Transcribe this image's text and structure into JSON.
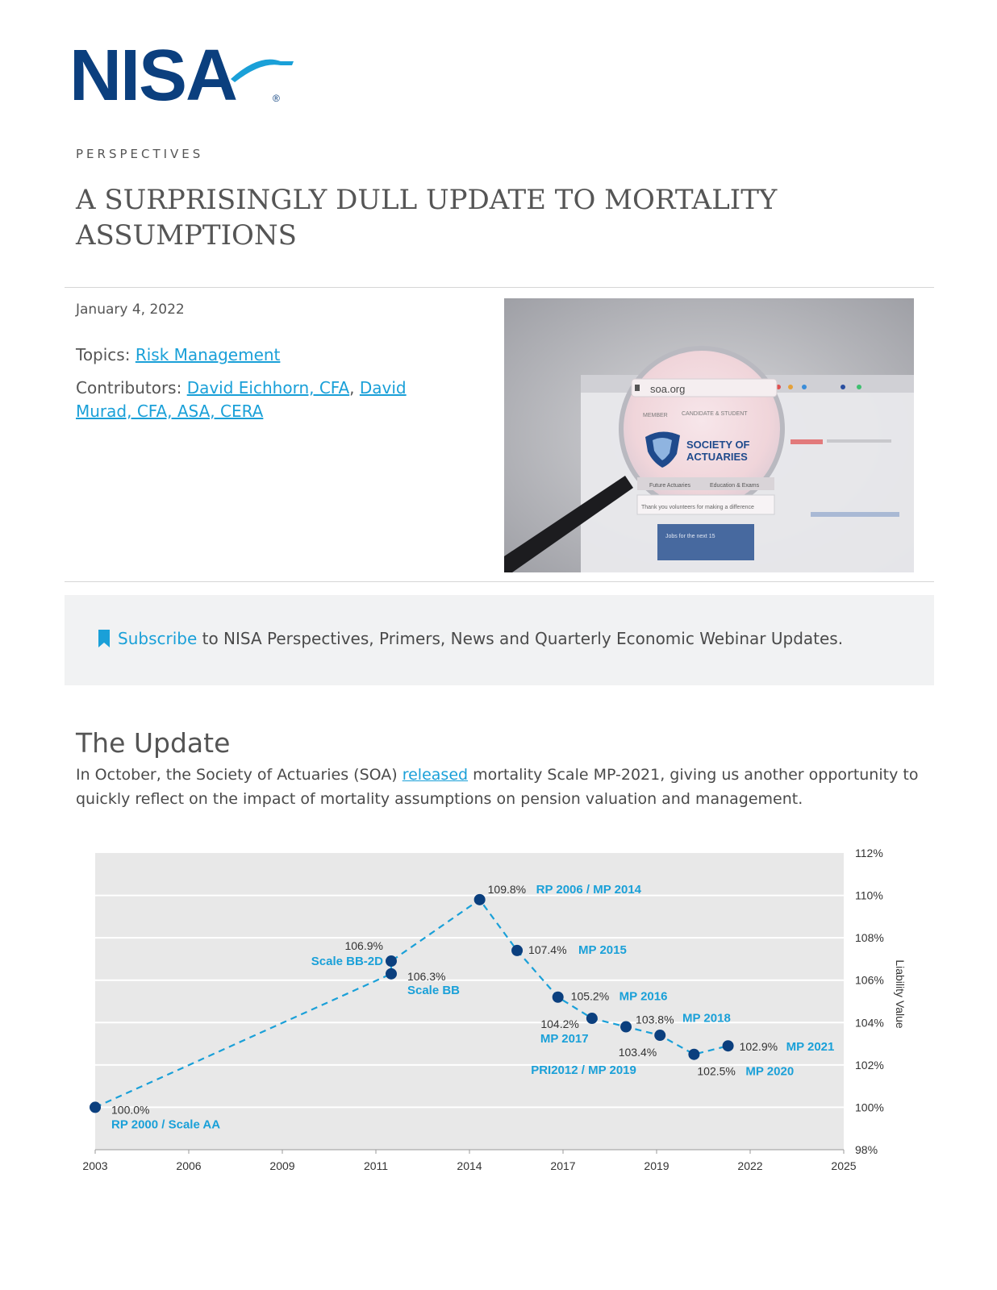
{
  "brand": {
    "logo_text": "NISA",
    "registered": "®"
  },
  "kicker": "PERSPECTIVES",
  "title": "A SURPRISINGLY DULL UPDATE TO MORTALITY ASSUMPTIONS",
  "meta": {
    "date": "January 4, 2022",
    "topics_label": "Topics:",
    "topic_link": "Risk Management",
    "contributors_label": "Contributors:",
    "contributor_1": "David Eichhorn, CFA",
    "separator": ",",
    "contributor_2": "David Murad, CFA, ASA, CERA"
  },
  "hero_image": {
    "url_text": "soa.org",
    "org_line_1": "SOCIETY OF",
    "org_line_2": "ACTUARIES",
    "tab_1": "MEMBER",
    "tab_2": "CANDIDATE & STUDENT",
    "nav_1": "Future Actuaries",
    "nav_2": "Education & Exams",
    "banner_text": "Thank you volunteers for making a difference",
    "button_text": "Jobs for the next 15"
  },
  "subscribe": {
    "icon": "bookmark-icon",
    "link": "Subscribe",
    "text": " to NISA Perspectives, Primers, News and Quarterly Economic Webinar Updates."
  },
  "section": {
    "title": "The Update",
    "text_before": "In October, the Society of Actuaries (SOA) ",
    "link": "released",
    "text_after": " mortality Scale MP-2021, giving us another opportunity to quickly reflect on the impact of mortality assumptions on pension valuation and management."
  },
  "colors": {
    "accent": "#1aa0d8",
    "brand": "#0b3f7e",
    "point": "#0b3f7e",
    "line": "#1aa0d8",
    "plot_bg": "#e8e8e8"
  },
  "chart_data": {
    "type": "scatter",
    "xlabel": "",
    "ylabel": "Liability Value",
    "xlim": [
      2003,
      2025
    ],
    "ylim": [
      98,
      112
    ],
    "x_ticks": [
      "2003",
      "2006",
      "2009",
      "2011",
      "2014",
      "2017",
      "2019",
      "2022",
      "2025"
    ],
    "y_ticks": [
      "98%",
      "100%",
      "102%",
      "104%",
      "106%",
      "108%",
      "110%",
      "112%"
    ],
    "grid": true,
    "y_axis_side": "right",
    "points": [
      {
        "x": 2003.0,
        "y": 100.0,
        "value_label": "100.0%",
        "name": "RP 2000 / Scale AA"
      },
      {
        "x": 2011.7,
        "y": 106.3,
        "value_label": "106.3%",
        "name": "Scale BB"
      },
      {
        "x": 2011.7,
        "y": 106.9,
        "value_label": "106.9%",
        "name": "Scale BB-2D"
      },
      {
        "x": 2014.3,
        "y": 109.8,
        "value_label": "109.8%",
        "name": "RP 2006 / MP 2014"
      },
      {
        "x": 2015.4,
        "y": 107.4,
        "value_label": "107.4%",
        "name": "MP 2015"
      },
      {
        "x": 2016.6,
        "y": 105.2,
        "value_label": "105.2%",
        "name": "MP 2016"
      },
      {
        "x": 2017.6,
        "y": 104.2,
        "value_label": "104.2%",
        "name": "MP 2017"
      },
      {
        "x": 2018.6,
        "y": 103.8,
        "value_label": "103.8%",
        "name": "MP 2018"
      },
      {
        "x": 2019.6,
        "y": 103.4,
        "value_label": "103.4%",
        "name": "PRI2012 / MP 2019"
      },
      {
        "x": 2020.6,
        "y": 102.5,
        "value_label": "102.5%",
        "name": "MP 2020"
      },
      {
        "x": 2021.6,
        "y": 102.9,
        "value_label": "102.9%",
        "name": "MP 2021"
      }
    ]
  }
}
